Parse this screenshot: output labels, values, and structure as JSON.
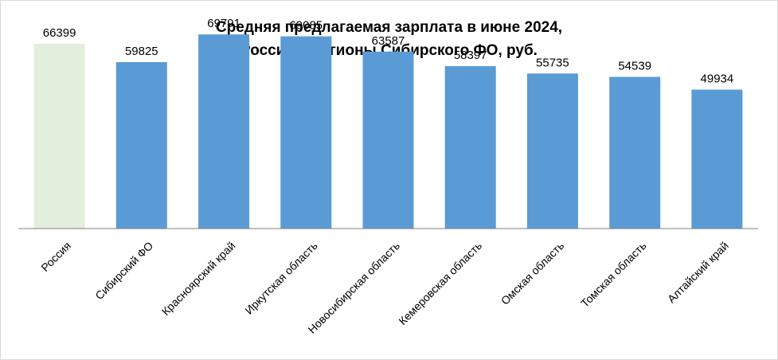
{
  "chart_data": {
    "type": "bar",
    "title": [
      "Средняя предлагаемая зарплата в июне 2024,",
      "Россия и регионы Сибирского ФО, руб."
    ],
    "categories": [
      "Россия",
      "Сибирский ФО",
      "Красноярский край",
      "Иркутская область",
      "Новосибирская область",
      "Кемеровская область",
      "Омская область",
      "Томская область",
      "Алтайский край"
    ],
    "values": [
      66399,
      59825,
      69791,
      69085,
      63587,
      58397,
      55735,
      54539,
      49934
    ],
    "value_labels": [
      "66399",
      "59825",
      "69791",
      "69085",
      "63587",
      "58397",
      "55735",
      "54539",
      "49934"
    ],
    "bar_colors": [
      "#e2efda",
      "#5b9bd5",
      "#5b9bd5",
      "#5b9bd5",
      "#5b9bd5",
      "#5b9bd5",
      "#5b9bd5",
      "#5b9bd5",
      "#5b9bd5"
    ],
    "xlabel": "",
    "ylabel": "",
    "ylim": [
      0,
      79000
    ],
    "grid": false,
    "legend": "none",
    "axis_line_color": "#7f7f7f"
  }
}
